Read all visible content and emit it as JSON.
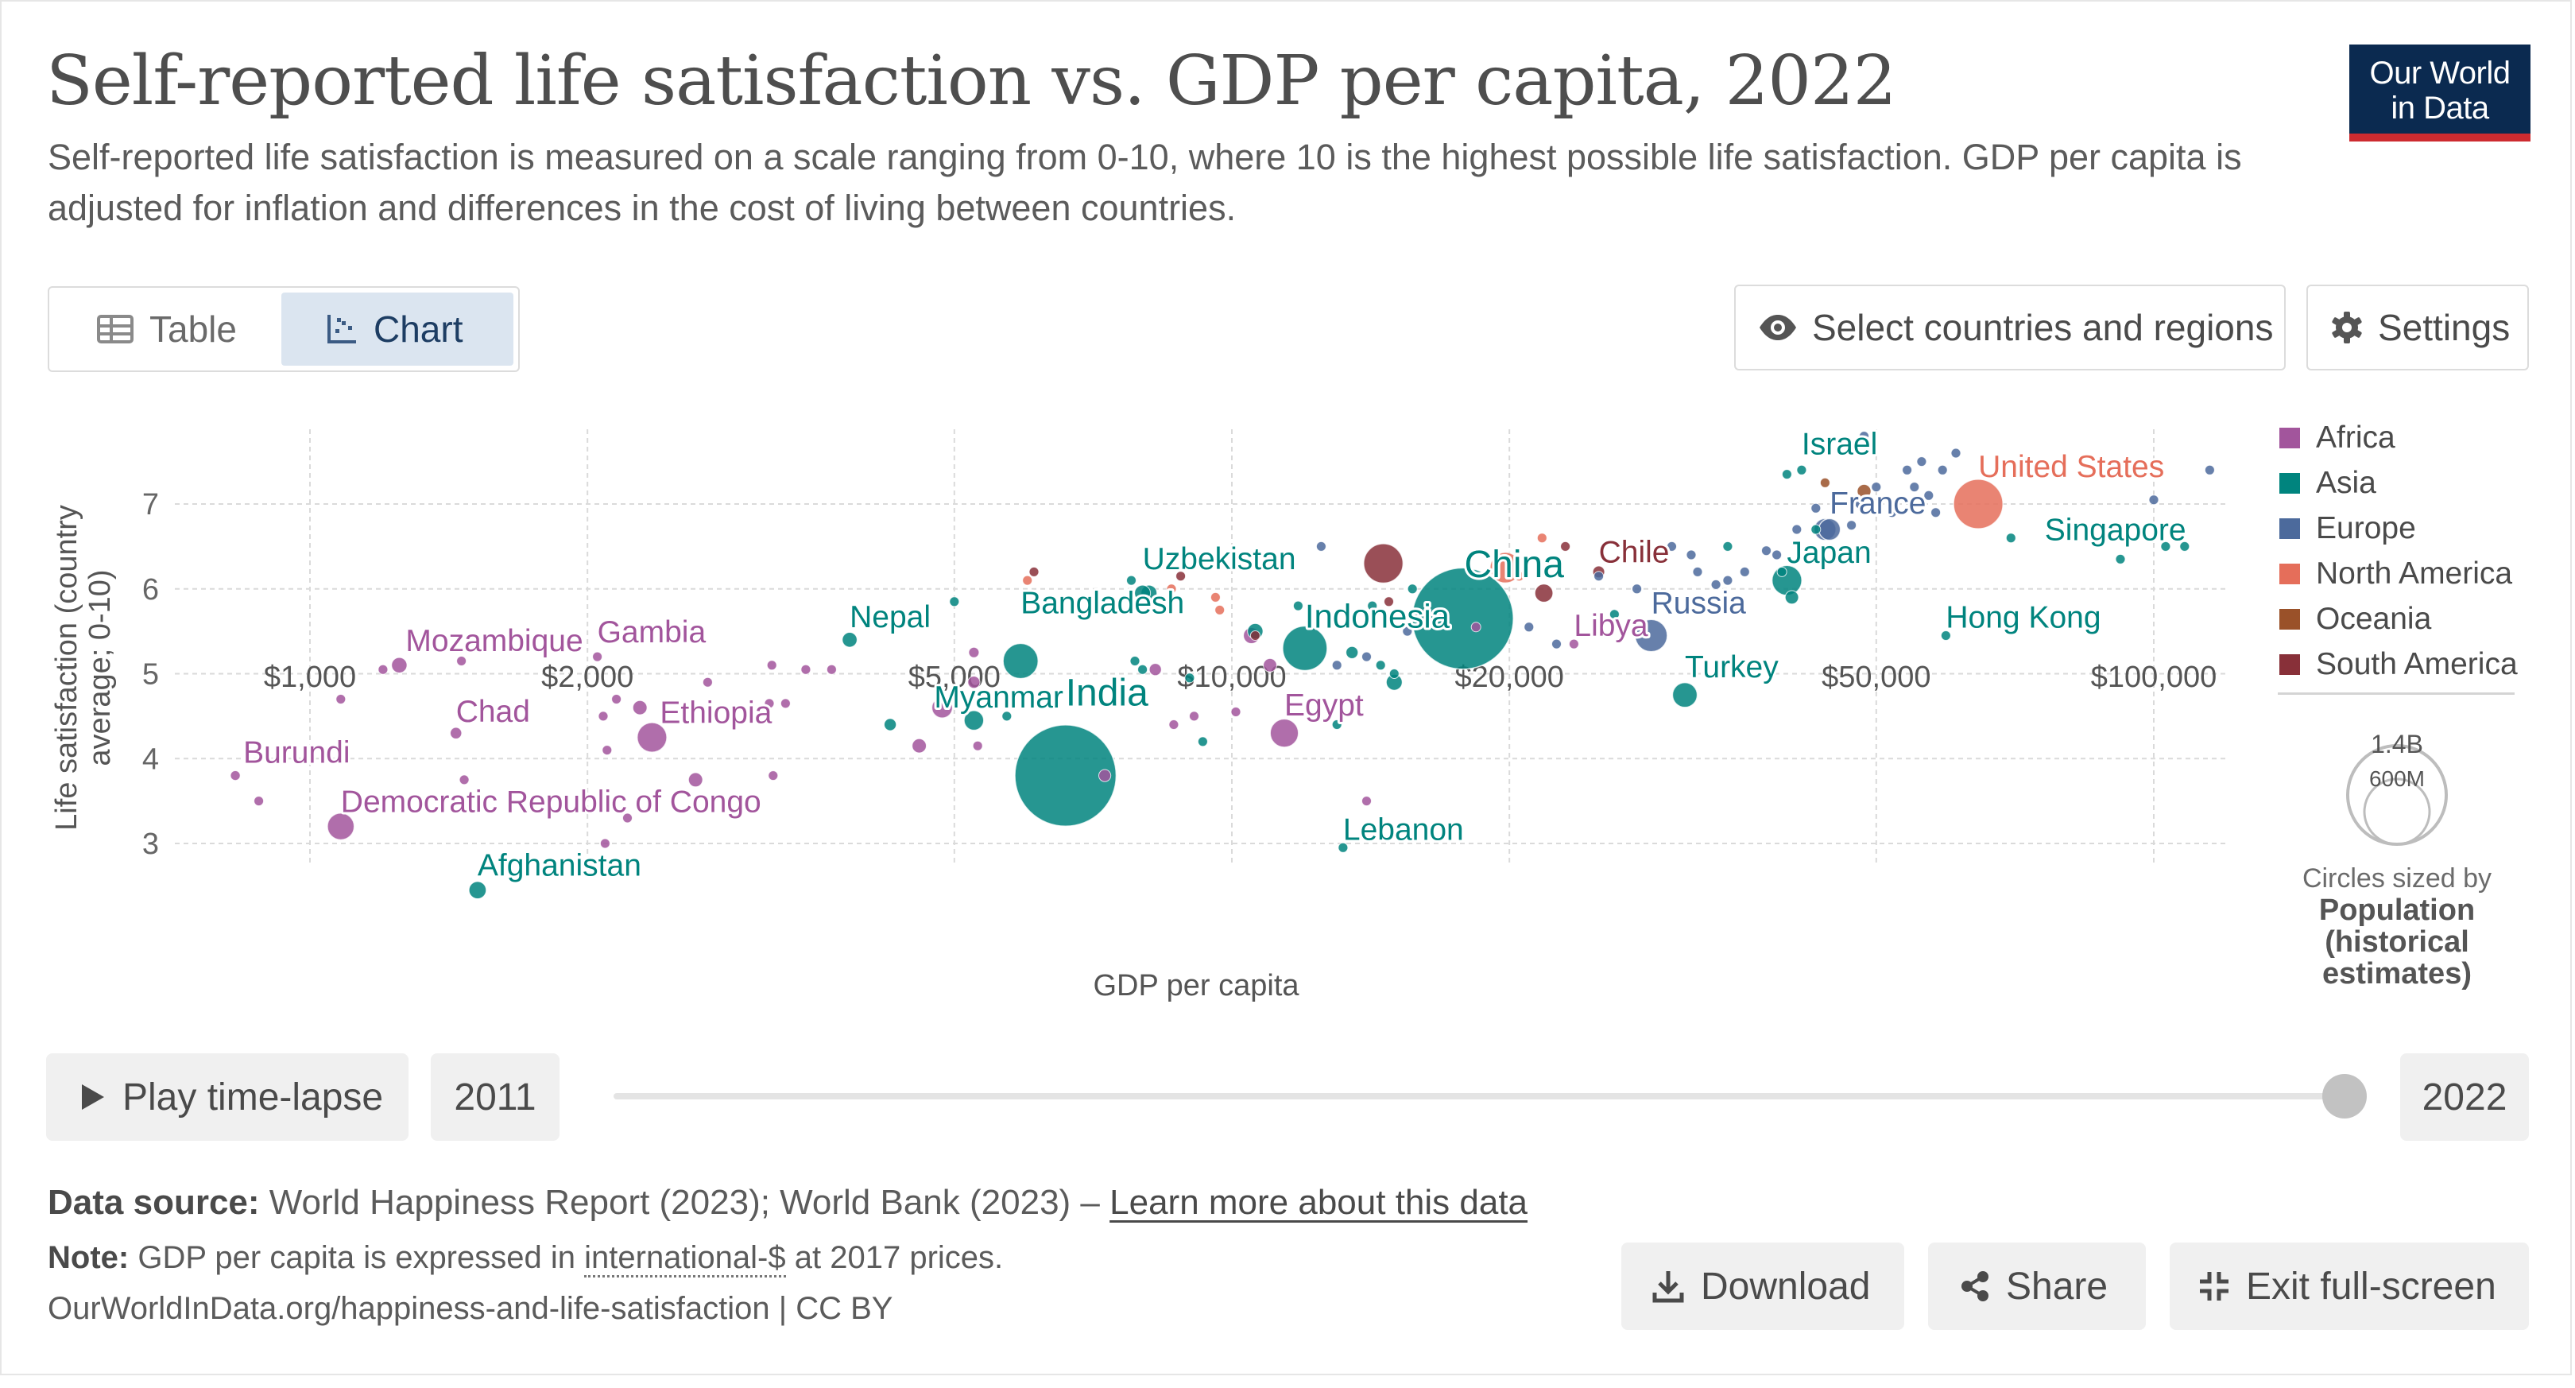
{
  "header": {
    "title": "Self-reported life satisfaction vs. GDP per capita, 2022",
    "subtitle": "Self-reported life satisfaction is measured on a scale ranging from 0-10, where 10 is the highest possible life satisfaction. GDP per capita is adjusted for inflation and differences in the cost of living between countries.",
    "logo_line1": "Our World",
    "logo_line2": "in Data"
  },
  "toolbar": {
    "table_label": "Table",
    "chart_label": "Chart",
    "select_label": "Select countries and regions",
    "settings_label": "Settings"
  },
  "legend": {
    "regions": [
      {
        "name": "Africa",
        "color": "#a2559c"
      },
      {
        "name": "Asia",
        "color": "#00847e"
      },
      {
        "name": "Europe",
        "color": "#4c6a9c"
      },
      {
        "name": "North America",
        "color": "#e56e5a"
      },
      {
        "name": "Oceania",
        "color": "#9a5129"
      },
      {
        "name": "South America",
        "color": "#883039"
      }
    ],
    "size_big": "1.4B",
    "size_small": "600M",
    "size_caption": "Circles sized by",
    "size_title_1": "Population",
    "size_title_2": "(historical",
    "size_title_3": "estimates)"
  },
  "timeline": {
    "play_label": "Play time-lapse",
    "start_year": "2011",
    "end_year": "2022",
    "position": 1.0
  },
  "footer": {
    "source_label": "Data source:",
    "source_text": "World Happiness Report (2023); World Bank (2023) –",
    "learn_more": "Learn more about this data",
    "note_label": "Note:",
    "note_before": "GDP per capita is expressed in",
    "note_term": "international-$",
    "note_after": "at 2017 prices.",
    "url": "OurWorldInData.org/happiness-and-life-satisfaction | CC BY",
    "download_label": "Download",
    "share_label": "Share",
    "exit_label": "Exit full-screen"
  },
  "chart_data": {
    "type": "scatter",
    "xlabel": "GDP per capita",
    "ylabel": "Life satisfaction (country average; 0-10)",
    "x_scale": "log",
    "xlim": [
      800,
      120000
    ],
    "ylim": [
      2.5,
      7.8
    ],
    "x_ticks": [
      1000,
      2000,
      5000,
      10000,
      20000,
      50000,
      100000
    ],
    "x_tick_labels": [
      "$1,000",
      "$2,000",
      "$5,000",
      "$10,000",
      "$20,000",
      "$50,000",
      "$100,000"
    ],
    "y_ticks": [
      3,
      4,
      5,
      6,
      7
    ],
    "y_tick_labels": [
      "3",
      "4",
      "5",
      "6",
      "7"
    ],
    "grid": true,
    "legend_position": "right",
    "size_by": "Population (historical estimates)",
    "labeled_points": [
      {
        "name": "Burundi",
        "region": "Africa",
        "x": 830,
        "y": 3.8,
        "pop_m": 13
      },
      {
        "name": "Mozambique",
        "region": "Africa",
        "x": 1250,
        "y": 5.1,
        "pop_m": 33
      },
      {
        "name": "Chad",
        "region": "Africa",
        "x": 1440,
        "y": 4.3,
        "pop_m": 18
      },
      {
        "name": "Democratic Republic of Congo",
        "region": "Africa",
        "x": 1080,
        "y": 3.2,
        "pop_m": 100
      },
      {
        "name": "Afghanistan",
        "region": "Asia",
        "x": 1520,
        "y": 2.45,
        "pop_m": 41
      },
      {
        "name": "Gambia",
        "region": "Africa",
        "x": 2050,
        "y": 5.2,
        "pop_m": 3
      },
      {
        "name": "Ethiopia",
        "region": "Africa",
        "x": 2350,
        "y": 4.25,
        "pop_m": 123
      },
      {
        "name": "Nepal",
        "region": "Asia",
        "x": 3850,
        "y": 5.4,
        "pop_m": 30
      },
      {
        "name": "Myanmar",
        "region": "Asia",
        "x": 5250,
        "y": 4.45,
        "pop_m": 54
      },
      {
        "name": "Bangladesh",
        "region": "Asia",
        "x": 5900,
        "y": 5.15,
        "pop_m": 171
      },
      {
        "name": "India",
        "region": "Asia",
        "x": 6600,
        "y": 3.8,
        "pop_m": 1420
      },
      {
        "name": "Uzbekistan",
        "region": "Asia",
        "x": 8000,
        "y": 5.95,
        "pop_m": 35
      },
      {
        "name": "Egypt",
        "region": "Africa",
        "x": 11400,
        "y": 4.3,
        "pop_m": 111
      },
      {
        "name": "Lebanon",
        "region": "Asia",
        "x": 13200,
        "y": 2.95,
        "pop_m": 5
      },
      {
        "name": "Indonesia",
        "region": "Asia",
        "x": 12000,
        "y": 5.3,
        "pop_m": 275
      },
      {
        "name": "China",
        "region": "Asia",
        "x": 17800,
        "y": 5.65,
        "pop_m": 1420
      },
      {
        "name": "Libya",
        "region": "Africa",
        "x": 23500,
        "y": 5.35,
        "pop_m": 7
      },
      {
        "name": "Chile",
        "region": "South America",
        "x": 25000,
        "y": 6.2,
        "pop_m": 19
      },
      {
        "name": "Russia",
        "region": "Europe",
        "x": 28500,
        "y": 5.45,
        "pop_m": 144
      },
      {
        "name": "Turkey",
        "region": "Asia",
        "x": 31000,
        "y": 4.75,
        "pop_m": 85
      },
      {
        "name": "Japan",
        "region": "Asia",
        "x": 40000,
        "y": 6.1,
        "pop_m": 124
      },
      {
        "name": "Israel",
        "region": "Asia",
        "x": 41500,
        "y": 7.4,
        "pop_m": 9
      },
      {
        "name": "France",
        "region": "Europe",
        "x": 44500,
        "y": 6.7,
        "pop_m": 65
      },
      {
        "name": "United States",
        "region": "North America",
        "x": 64500,
        "y": 7.0,
        "pop_m": 338
      },
      {
        "name": "Singapore",
        "region": "Asia",
        "x": 108000,
        "y": 6.5,
        "pop_m": 6
      },
      {
        "name": "Hong Kong",
        "region": "Asia",
        "x": 59500,
        "y": 5.45,
        "pop_m": 7
      }
    ],
    "other_points": [
      {
        "region": "Africa",
        "x": 880,
        "y": 3.5,
        "pop_m": 5
      },
      {
        "region": "Africa",
        "x": 1080,
        "y": 4.7,
        "pop_m": 5
      },
      {
        "region": "Africa",
        "x": 1200,
        "y": 5.05,
        "pop_m": 12
      },
      {
        "region": "Africa",
        "x": 1470,
        "y": 3.75,
        "pop_m": 5
      },
      {
        "region": "Africa",
        "x": 1460,
        "y": 5.15,
        "pop_m": 4
      },
      {
        "region": "Africa",
        "x": 2080,
        "y": 4.5,
        "pop_m": 8
      },
      {
        "region": "Africa",
        "x": 2150,
        "y": 4.7,
        "pop_m": 10
      },
      {
        "region": "Africa",
        "x": 2280,
        "y": 4.6,
        "pop_m": 28
      },
      {
        "region": "Africa",
        "x": 2100,
        "y": 4.1,
        "pop_m": 5
      },
      {
        "region": "Africa",
        "x": 2090,
        "y": 3.0,
        "pop_m": 5
      },
      {
        "region": "Africa",
        "x": 2210,
        "y": 3.3,
        "pop_m": 5
      },
      {
        "region": "Africa",
        "x": 2620,
        "y": 3.75,
        "pop_m": 28
      },
      {
        "region": "Africa",
        "x": 2700,
        "y": 4.9,
        "pop_m": 5
      },
      {
        "region": "Africa",
        "x": 3150,
        "y": 4.65,
        "pop_m": 8
      },
      {
        "region": "Africa",
        "x": 3280,
        "y": 4.65,
        "pop_m": 8
      },
      {
        "region": "Africa",
        "x": 3170,
        "y": 5.1,
        "pop_m": 5
      },
      {
        "region": "Africa",
        "x": 3180,
        "y": 3.8,
        "pop_m": 6
      },
      {
        "region": "Africa",
        "x": 3450,
        "y": 5.05,
        "pop_m": 5
      },
      {
        "region": "Africa",
        "x": 3680,
        "y": 5.05,
        "pop_m": 8
      },
      {
        "region": "Africa",
        "x": 4580,
        "y": 4.15,
        "pop_m": 28
      },
      {
        "region": "Africa",
        "x": 4850,
        "y": 4.6,
        "pop_m": 60
      },
      {
        "region": "Africa",
        "x": 5250,
        "y": 4.9,
        "pop_m": 20
      },
      {
        "region": "Africa",
        "x": 5250,
        "y": 5.25,
        "pop_m": 15
      },
      {
        "region": "Africa",
        "x": 5300,
        "y": 4.15,
        "pop_m": 5
      },
      {
        "region": "Africa",
        "x": 7280,
        "y": 3.8,
        "pop_m": 20
      },
      {
        "region": "Africa",
        "x": 8260,
        "y": 5.05,
        "pop_m": 20
      },
      {
        "region": "Africa",
        "x": 8650,
        "y": 4.4,
        "pop_m": 5
      },
      {
        "region": "Africa",
        "x": 9100,
        "y": 4.5,
        "pop_m": 8
      },
      {
        "region": "Africa",
        "x": 10100,
        "y": 4.55,
        "pop_m": 8
      },
      {
        "region": "Africa",
        "x": 10500,
        "y": 5.45,
        "pop_m": 35
      },
      {
        "region": "Africa",
        "x": 11000,
        "y": 5.1,
        "pop_m": 25
      },
      {
        "region": "Africa",
        "x": 14000,
        "y": 3.5,
        "pop_m": 5
      },
      {
        "region": "Africa",
        "x": 18400,
        "y": 5.55,
        "pop_m": 5
      },
      {
        "region": "Asia",
        "x": 5000,
        "y": 5.85,
        "pop_m": 5
      },
      {
        "region": "Asia",
        "x": 4260,
        "y": 4.4,
        "pop_m": 20
      },
      {
        "region": "Asia",
        "x": 5700,
        "y": 4.5,
        "pop_m": 5
      },
      {
        "region": "Asia",
        "x": 7780,
        "y": 6.1,
        "pop_m": 10
      },
      {
        "region": "Asia",
        "x": 8130,
        "y": 5.95,
        "pop_m": 35
      },
      {
        "region": "Asia",
        "x": 7850,
        "y": 5.15,
        "pop_m": 5
      },
      {
        "region": "Asia",
        "x": 8000,
        "y": 5.05,
        "pop_m": 5
      },
      {
        "region": "Asia",
        "x": 9000,
        "y": 4.95,
        "pop_m": 10
      },
      {
        "region": "Asia",
        "x": 9300,
        "y": 4.2,
        "pop_m": 5
      },
      {
        "region": "Asia",
        "x": 10600,
        "y": 5.5,
        "pop_m": 33
      },
      {
        "region": "Asia",
        "x": 11800,
        "y": 5.8,
        "pop_m": 5
      },
      {
        "region": "Asia",
        "x": 13000,
        "y": 4.4,
        "pop_m": 5
      },
      {
        "region": "Asia",
        "x": 13500,
        "y": 5.25,
        "pop_m": 20
      },
      {
        "region": "Asia",
        "x": 14200,
        "y": 5.8,
        "pop_m": 8
      },
      {
        "region": "Asia",
        "x": 14500,
        "y": 5.1,
        "pop_m": 8
      },
      {
        "region": "Asia",
        "x": 15000,
        "y": 4.9,
        "pop_m": 35
      },
      {
        "region": "Asia",
        "x": 15000,
        "y": 5.0,
        "pop_m": 8
      },
      {
        "region": "Asia",
        "x": 15700,
        "y": 6.0,
        "pop_m": 10
      },
      {
        "region": "Asia",
        "x": 16500,
        "y": 5.6,
        "pop_m": 8
      },
      {
        "region": "Asia",
        "x": 26000,
        "y": 5.7,
        "pop_m": 8
      },
      {
        "region": "Asia",
        "x": 34500,
        "y": 6.5,
        "pop_m": 5
      },
      {
        "region": "Asia",
        "x": 40500,
        "y": 5.9,
        "pop_m": 25
      },
      {
        "region": "Asia",
        "x": 39500,
        "y": 6.2,
        "pop_m": 8
      },
      {
        "region": "Asia",
        "x": 40000,
        "y": 7.35,
        "pop_m": 5
      },
      {
        "region": "Asia",
        "x": 43000,
        "y": 6.7,
        "pop_m": 5
      },
      {
        "region": "Asia",
        "x": 52000,
        "y": 7.0,
        "pop_m": 5
      },
      {
        "region": "Asia",
        "x": 70000,
        "y": 6.6,
        "pop_m": 5
      },
      {
        "region": "Asia",
        "x": 92000,
        "y": 6.35,
        "pop_m": 5
      },
      {
        "region": "Asia",
        "x": 103000,
        "y": 6.5,
        "pop_m": 5
      },
      {
        "region": "Europe",
        "x": 12500,
        "y": 6.5,
        "pop_m": 5
      },
      {
        "region": "Europe",
        "x": 13000,
        "y": 5.1,
        "pop_m": 8
      },
      {
        "region": "Europe",
        "x": 14000,
        "y": 5.2,
        "pop_m": 5
      },
      {
        "region": "Europe",
        "x": 15500,
        "y": 5.5,
        "pop_m": 5
      },
      {
        "region": "Europe",
        "x": 21000,
        "y": 5.55,
        "pop_m": 10
      },
      {
        "region": "Europe",
        "x": 22500,
        "y": 5.35,
        "pop_m": 5
      },
      {
        "region": "Europe",
        "x": 25000,
        "y": 6.15,
        "pop_m": 5
      },
      {
        "region": "Europe",
        "x": 27500,
        "y": 6.0,
        "pop_m": 5
      },
      {
        "region": "Europe",
        "x": 30000,
        "y": 6.5,
        "pop_m": 5
      },
      {
        "region": "Europe",
        "x": 31500,
        "y": 6.4,
        "pop_m": 5
      },
      {
        "region": "Europe",
        "x": 32000,
        "y": 6.2,
        "pop_m": 5
      },
      {
        "region": "Europe",
        "x": 33500,
        "y": 6.05,
        "pop_m": 5
      },
      {
        "region": "Europe",
        "x": 34500,
        "y": 6.1,
        "pop_m": 10
      },
      {
        "region": "Europe",
        "x": 36000,
        "y": 6.2,
        "pop_m": 10
      },
      {
        "region": "Europe",
        "x": 38000,
        "y": 6.45,
        "pop_m": 10
      },
      {
        "region": "Europe",
        "x": 39000,
        "y": 6.4,
        "pop_m": 10
      },
      {
        "region": "Europe",
        "x": 41000,
        "y": 6.7,
        "pop_m": 5
      },
      {
        "region": "Europe",
        "x": 43000,
        "y": 6.95,
        "pop_m": 10
      },
      {
        "region": "Europe",
        "x": 44000,
        "y": 6.7,
        "pop_m": 67
      },
      {
        "region": "Europe",
        "x": 46000,
        "y": 6.45,
        "pop_m": 10
      },
      {
        "region": "Europe",
        "x": 47000,
        "y": 6.75,
        "pop_m": 5
      },
      {
        "region": "Europe",
        "x": 48000,
        "y": 7.0,
        "pop_m": 5
      },
      {
        "region": "Europe",
        "x": 48500,
        "y": 7.8,
        "pop_m": 5
      },
      {
        "region": "Europe",
        "x": 50000,
        "y": 7.2,
        "pop_m": 5
      },
      {
        "region": "Europe",
        "x": 52000,
        "y": 6.9,
        "pop_m": 5
      },
      {
        "region": "Europe",
        "x": 54000,
        "y": 7.4,
        "pop_m": 5
      },
      {
        "region": "Europe",
        "x": 55000,
        "y": 7.2,
        "pop_m": 5
      },
      {
        "region": "Europe",
        "x": 56000,
        "y": 7.5,
        "pop_m": 5
      },
      {
        "region": "Europe",
        "x": 57000,
        "y": 7.1,
        "pop_m": 5
      },
      {
        "region": "Europe",
        "x": 58000,
        "y": 6.9,
        "pop_m": 5
      },
      {
        "region": "Europe",
        "x": 59000,
        "y": 7.4,
        "pop_m": 5
      },
      {
        "region": "Europe",
        "x": 61000,
        "y": 7.6,
        "pop_m": 5
      },
      {
        "region": "Europe",
        "x": 100000,
        "y": 7.05,
        "pop_m": 5
      },
      {
        "region": "Europe",
        "x": 115000,
        "y": 7.4,
        "pop_m": 5
      },
      {
        "region": "North America",
        "x": 6000,
        "y": 6.1,
        "pop_m": 5
      },
      {
        "region": "North America",
        "x": 8600,
        "y": 6.0,
        "pop_m": 5
      },
      {
        "region": "North America",
        "x": 9600,
        "y": 5.9,
        "pop_m": 5
      },
      {
        "region": "North America",
        "x": 9700,
        "y": 5.75,
        "pop_m": 5
      },
      {
        "region": "North America",
        "x": 19800,
        "y": 6.25,
        "pop_m": 130
      },
      {
        "region": "North America",
        "x": 21700,
        "y": 6.6,
        "pop_m": 5
      },
      {
        "region": "North America",
        "x": 20500,
        "y": 6.15,
        "pop_m": 5
      },
      {
        "region": "Oceania",
        "x": 44000,
        "y": 7.25,
        "pop_m": 5
      },
      {
        "region": "Oceania",
        "x": 48500,
        "y": 7.15,
        "pop_m": 26
      },
      {
        "region": "South America",
        "x": 6100,
        "y": 6.2,
        "pop_m": 5
      },
      {
        "region": "South America",
        "x": 8800,
        "y": 6.15,
        "pop_m": 5
      },
      {
        "region": "South America",
        "x": 10600,
        "y": 5.45,
        "pop_m": 8
      },
      {
        "region": "South America",
        "x": 14800,
        "y": 5.85,
        "pop_m": 5
      },
      {
        "region": "South America",
        "x": 14600,
        "y": 6.3,
        "pop_m": 215
      },
      {
        "region": "South America",
        "x": 21800,
        "y": 5.95,
        "pop_m": 45
      },
      {
        "region": "South America",
        "x": 23000,
        "y": 6.5,
        "pop_m": 5
      }
    ]
  }
}
